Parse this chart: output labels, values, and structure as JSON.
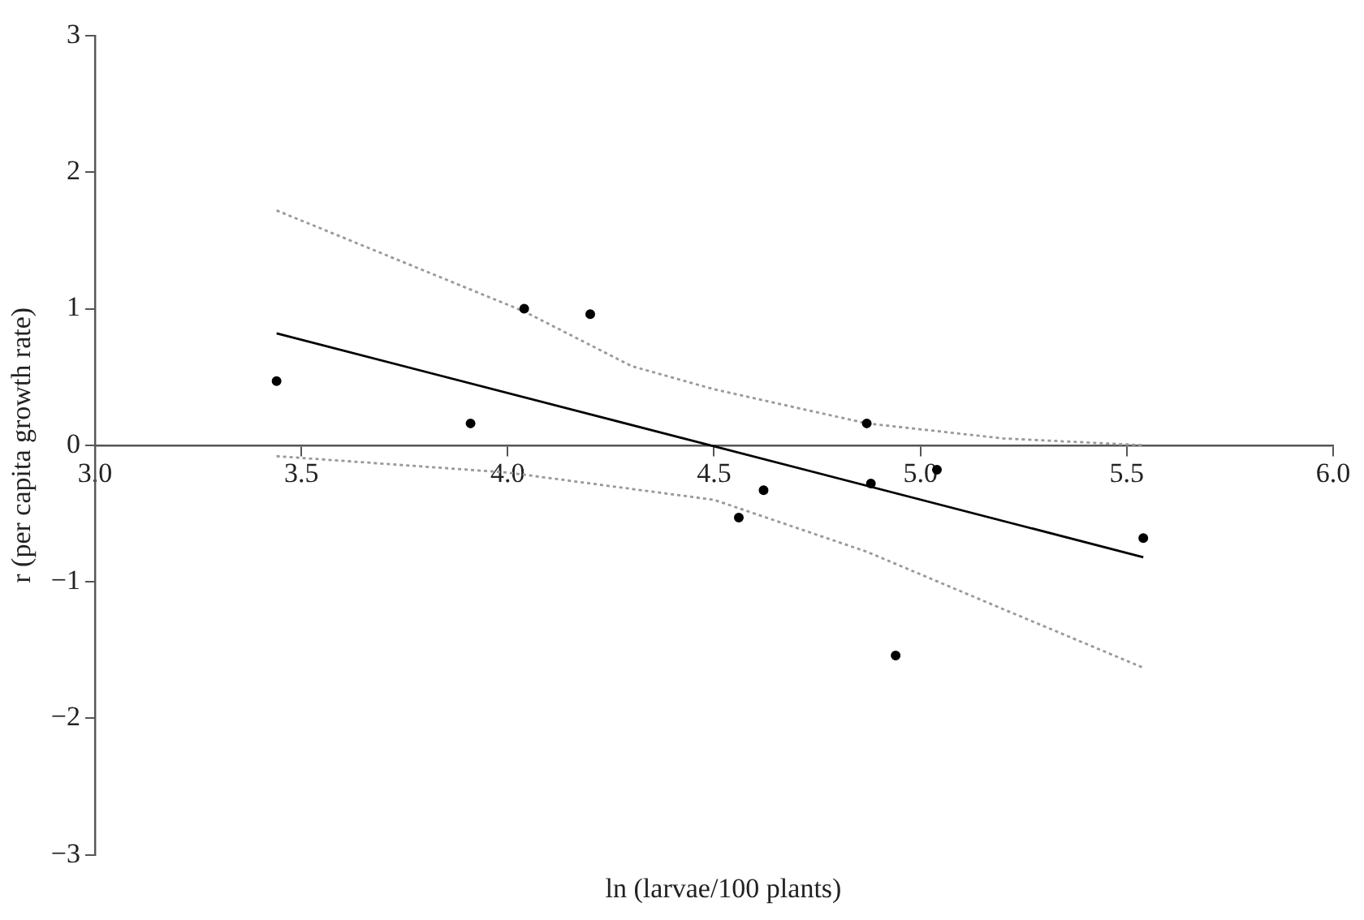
{
  "chart_data": {
    "type": "scatter",
    "xlabel": "ln (larvae/100 plants)",
    "ylabel": "r (per capita growth rate)",
    "xlim": [
      3,
      6
    ],
    "xticks": [
      {
        "value": 3,
        "label": "3.0"
      },
      {
        "value": 3.5,
        "label": "3.5"
      },
      {
        "value": 4,
        "label": "4.0"
      },
      {
        "value": 4.5,
        "label": "4.5"
      },
      {
        "value": 5,
        "label": "5.0"
      },
      {
        "value": 5.5,
        "label": "5.5"
      },
      {
        "value": 6,
        "label": "6.0"
      }
    ],
    "ylim": [
      -3,
      3
    ],
    "yticks": [
      {
        "value": -3,
        "label": "−3"
      },
      {
        "value": -2,
        "label": "−2"
      },
      {
        "value": -1,
        "label": "−1"
      },
      0,
      1,
      2,
      3
    ],
    "grid": false,
    "legend": false,
    "series": [
      {
        "color": "#000000",
        "marker": "circle",
        "x": [
          3.44,
          3.91,
          4.04,
          4.2,
          4.87,
          4.62,
          4.56,
          4.88,
          5.04,
          4.94,
          5.54
        ],
        "values": [
          0.47,
          0.16,
          1.0,
          0.96,
          0.16,
          -0.33,
          -0.53,
          -0.28,
          -0.18,
          -1.54,
          -0.68
        ]
      },
      {
        "type": "line",
        "color": "#000000",
        "marker": "none",
        "line_style": "solid",
        "x": [
          3.44,
          5.54
        ],
        "values": [
          0.82,
          -0.82
        ]
      },
      {
        "type": "line",
        "color": "#999999",
        "marker": "none",
        "line_style": "dotted",
        "x": [
          3.44,
          4.04,
          4.3,
          4.5,
          4.87,
          5.2,
          5.54
        ],
        "values": [
          1.72,
          0.98,
          0.58,
          0.41,
          0.16,
          0.05,
          0.0
        ]
      },
      {
        "type": "line",
        "color": "#999999",
        "marker": "none",
        "line_style": "dotted",
        "x": [
          3.44,
          4.0,
          4.5,
          4.87,
          5.2,
          5.54
        ],
        "values": [
          -0.08,
          -0.2,
          -0.4,
          -0.78,
          -1.2,
          -1.63
        ]
      }
    ]
  }
}
